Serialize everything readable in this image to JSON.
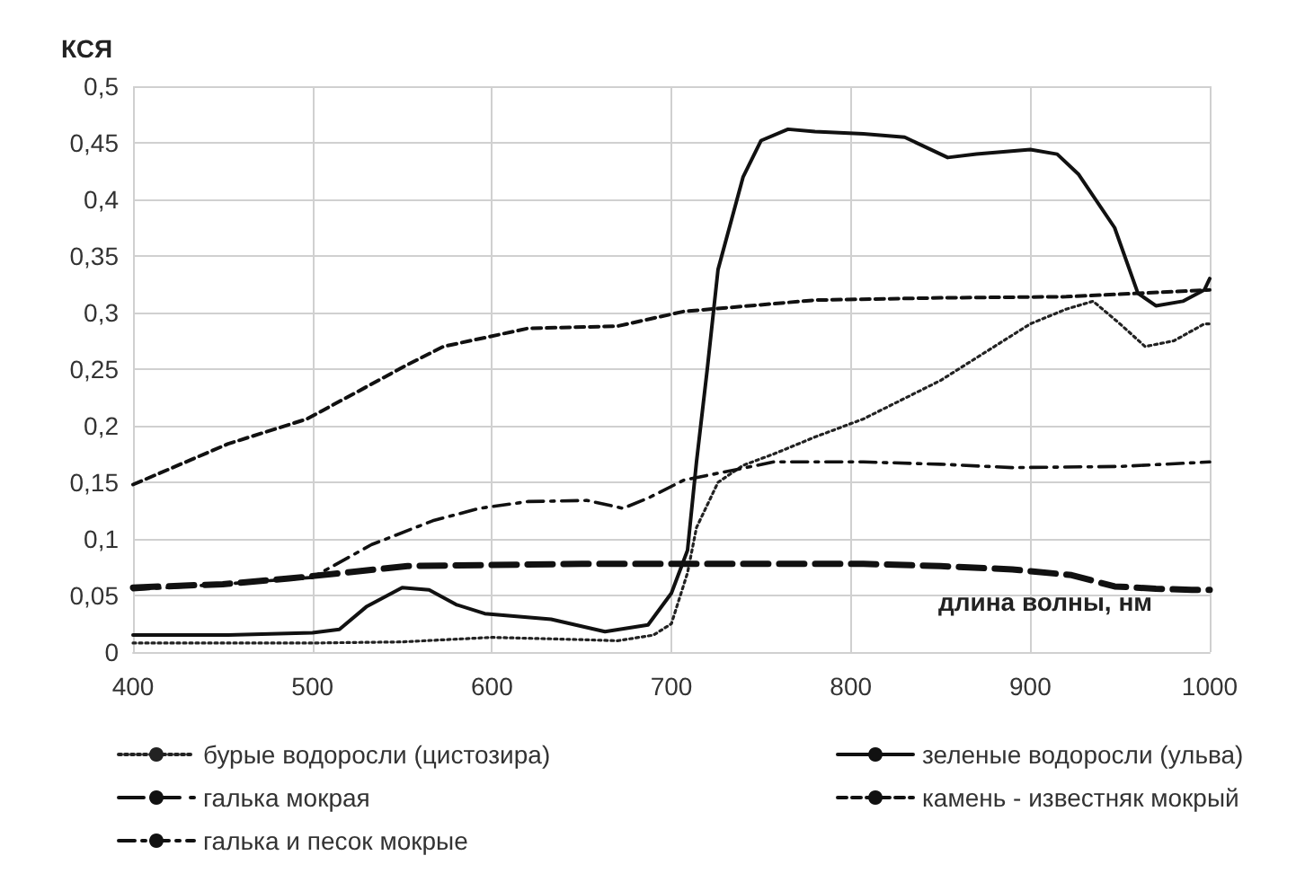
{
  "chart_data": {
    "type": "line",
    "ylabel": "КСЯ",
    "xlabel": "длина волны, нм",
    "xlim": [
      400,
      1000
    ],
    "xticks": [
      400,
      500,
      600,
      700,
      800,
      900,
      1000
    ],
    "ylim": [
      0,
      0.5
    ],
    "yticks": [
      0,
      {
        "value": 0.05,
        "label": "0,05"
      },
      {
        "value": 0.1,
        "label": "0,1"
      },
      {
        "value": 0.15,
        "label": "0,15"
      },
      {
        "value": 0.2,
        "label": "0,2"
      },
      {
        "value": 0.25,
        "label": "0,25"
      },
      {
        "value": 0.3,
        "label": "0,3"
      },
      {
        "value": 0.35,
        "label": "0,35"
      },
      {
        "value": 0.4,
        "label": "0,4"
      },
      {
        "value": 0.45,
        "label": "0,45"
      },
      {
        "value": 0.5,
        "label": "0,5"
      }
    ],
    "grid": true,
    "legend": "bottom",
    "marker": "none",
    "series": [
      {
        "name": "бурые водоросли (цистозира)",
        "color": "#222222",
        "line_style": "dotted",
        "x": [
          400,
          450,
          500,
          550,
          600,
          650,
          670,
          690,
          700,
          709,
          714,
          726,
          740,
          757,
          780,
          807,
          850,
          880,
          900,
          920,
          935,
          950,
          964,
          980,
          997,
          1000
        ],
        "values": [
          0.008,
          0.008,
          0.008,
          0.009,
          0.013,
          0.011,
          0.01,
          0.015,
          0.025,
          0.07,
          0.11,
          0.15,
          0.165,
          0.175,
          0.19,
          0.206,
          0.24,
          0.27,
          0.29,
          0.303,
          0.31,
          0.29,
          0.27,
          0.275,
          0.29,
          0.29
        ]
      },
      {
        "name": "зеленые водоросли (ульва)",
        "color": "#111111",
        "line_style": "solid",
        "x": [
          400,
          450,
          500,
          515,
          530,
          550,
          565,
          580,
          596,
          633,
          663,
          687,
          700,
          709,
          714,
          720,
          726,
          740,
          750,
          765,
          780,
          807,
          830,
          854,
          870,
          900,
          915,
          927,
          947,
          960,
          970,
          985,
          997,
          1000
        ],
        "values": [
          0.015,
          0.015,
          0.017,
          0.02,
          0.04,
          0.057,
          0.055,
          0.042,
          0.034,
          0.029,
          0.018,
          0.024,
          0.052,
          0.09,
          0.168,
          0.25,
          0.338,
          0.42,
          0.452,
          0.462,
          0.46,
          0.458,
          0.455,
          0.437,
          0.44,
          0.444,
          0.44,
          0.422,
          0.375,
          0.317,
          0.306,
          0.31,
          0.32,
          0.33
        ]
      },
      {
        "name": "галька мокрая",
        "color": "#111111",
        "line_style": "longdash",
        "x": [
          400,
          450,
          487,
          553,
          600,
          650,
          700,
          750,
          807,
          850,
          890,
          923,
          947,
          970,
          990,
          1000
        ],
        "values": [
          0.057,
          0.06,
          0.065,
          0.076,
          0.077,
          0.078,
          0.078,
          0.078,
          0.078,
          0.076,
          0.073,
          0.068,
          0.058,
          0.056,
          0.055,
          0.055
        ]
      },
      {
        "name": "камень - известняк мокрый",
        "color": "#111111",
        "line_style": "dashed",
        "x": [
          400,
          453,
          497,
          553,
          573,
          620,
          670,
          707,
          780,
          850,
          920,
          1000
        ],
        "values": [
          0.148,
          0.184,
          0.206,
          0.254,
          0.27,
          0.286,
          0.288,
          0.301,
          0.311,
          0.313,
          0.314,
          0.32
        ]
      },
      {
        "name": "галька и песок мокрые",
        "color": "#111111",
        "line_style": "dashdot",
        "x": [
          400,
          450,
          500,
          533,
          567,
          593,
          620,
          653,
          673,
          687,
          707,
          726,
          757,
          807,
          850,
          890,
          950,
          1000
        ],
        "values": [
          0.055,
          0.06,
          0.066,
          0.095,
          0.116,
          0.127,
          0.133,
          0.134,
          0.127,
          0.136,
          0.152,
          0.158,
          0.168,
          0.168,
          0.166,
          0.163,
          0.164,
          0.168
        ]
      }
    ]
  }
}
